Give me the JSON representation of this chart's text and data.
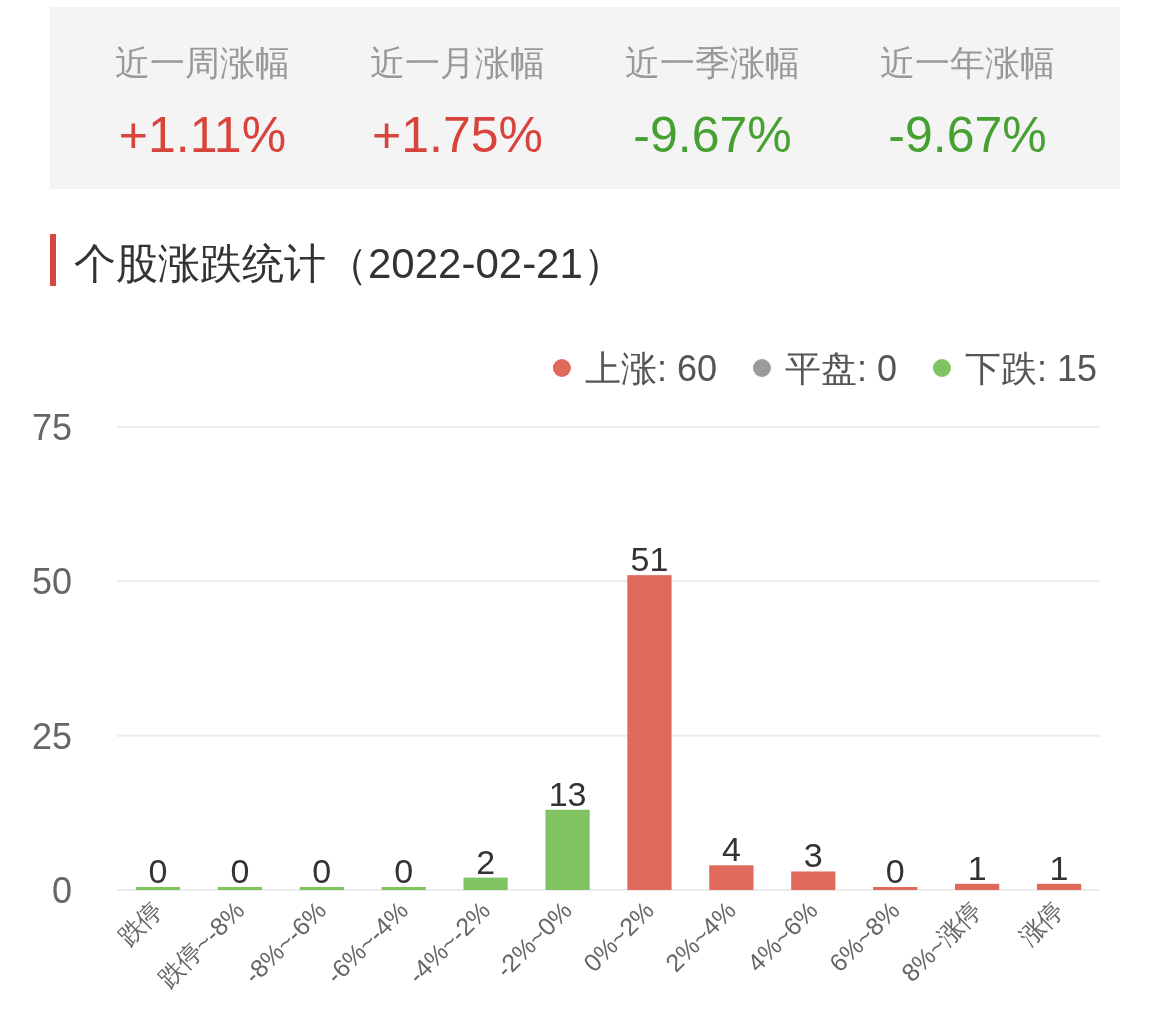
{
  "chart_data": [
    {
      "type": "other",
      "categories": [
        "近一周涨幅",
        "近一月涨幅",
        "近一季涨幅",
        "近一年涨幅"
      ],
      "value_labels": [
        "+1.11%",
        "+1.75%",
        "-9.67%",
        "-9.67%"
      ],
      "colors": [
        "#d8443c",
        "#d8443c",
        "#46a032",
        "#46a032"
      ]
    },
    {
      "type": "bar",
      "title": "个股涨跌统计（2022-02-21）",
      "categories": [
        "跌停",
        "跌停~-8%",
        "-8%~-6%",
        "-6%~-4%",
        "-4%~-2%",
        "-2%~0%",
        "0%~2%",
        "2%~4%",
        "4%~6%",
        "6%~8%",
        "8%~涨停",
        "涨停"
      ],
      "stacked": true,
      "series": [
        {
          "name": "上涨: 60",
          "color": "#e0695c",
          "values": [
            null,
            null,
            null,
            null,
            null,
            null,
            51,
            4,
            3,
            0,
            1,
            1
          ]
        },
        {
          "name": "平盘: 0",
          "color": "#9b9b9b",
          "values": [
            null,
            null,
            null,
            null,
            null,
            null,
            null,
            null,
            null,
            null,
            null,
            null
          ]
        },
        {
          "name": "下跌: 15",
          "color": "#80c462",
          "values": [
            0,
            0,
            0,
            0,
            2,
            13,
            null,
            null,
            null,
            null,
            null,
            null
          ]
        }
      ],
      "ylim": [
        0,
        75
      ],
      "yticks": [
        0,
        25,
        50,
        75
      ],
      "grid": "y",
      "legend": "top right",
      "data_labels": true
    }
  ]
}
